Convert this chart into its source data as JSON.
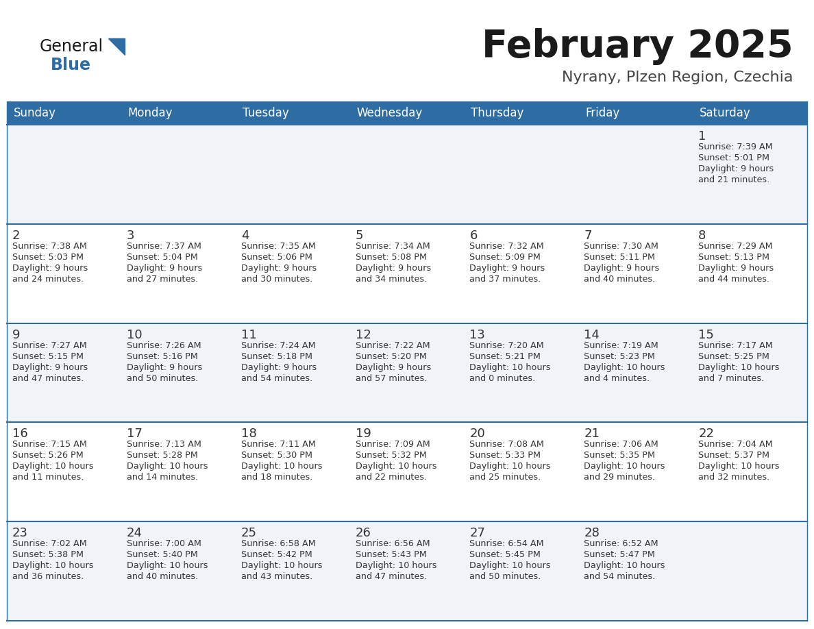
{
  "title": "February 2025",
  "subtitle": "Nyrany, Plzen Region, Czechia",
  "days_of_week": [
    "Sunday",
    "Monday",
    "Tuesday",
    "Wednesday",
    "Thursday",
    "Friday",
    "Saturday"
  ],
  "header_bg": "#2E6DA4",
  "header_text": "#FFFFFF",
  "row_bg_light": "#F0F4F8",
  "row_bg_white": "#FFFFFF",
  "cell_text": "#333333",
  "separator_color": "#2E6DA4",
  "title_color": "#1a1a1a",
  "subtitle_color": "#444444",
  "generalblue_black": "#1a1a1a",
  "generalblue_blue": "#2E6DA4",
  "calendar_data": [
    [
      null,
      null,
      null,
      null,
      null,
      null,
      {
        "day": 1,
        "sunrise": "7:39 AM",
        "sunset": "5:01 PM",
        "daylight": "9 hours\nand 21 minutes."
      }
    ],
    [
      {
        "day": 2,
        "sunrise": "7:38 AM",
        "sunset": "5:03 PM",
        "daylight": "9 hours\nand 24 minutes."
      },
      {
        "day": 3,
        "sunrise": "7:37 AM",
        "sunset": "5:04 PM",
        "daylight": "9 hours\nand 27 minutes."
      },
      {
        "day": 4,
        "sunrise": "7:35 AM",
        "sunset": "5:06 PM",
        "daylight": "9 hours\nand 30 minutes."
      },
      {
        "day": 5,
        "sunrise": "7:34 AM",
        "sunset": "5:08 PM",
        "daylight": "9 hours\nand 34 minutes."
      },
      {
        "day": 6,
        "sunrise": "7:32 AM",
        "sunset": "5:09 PM",
        "daylight": "9 hours\nand 37 minutes."
      },
      {
        "day": 7,
        "sunrise": "7:30 AM",
        "sunset": "5:11 PM",
        "daylight": "9 hours\nand 40 minutes."
      },
      {
        "day": 8,
        "sunrise": "7:29 AM",
        "sunset": "5:13 PM",
        "daylight": "9 hours\nand 44 minutes."
      }
    ],
    [
      {
        "day": 9,
        "sunrise": "7:27 AM",
        "sunset": "5:15 PM",
        "daylight": "9 hours\nand 47 minutes."
      },
      {
        "day": 10,
        "sunrise": "7:26 AM",
        "sunset": "5:16 PM",
        "daylight": "9 hours\nand 50 minutes."
      },
      {
        "day": 11,
        "sunrise": "7:24 AM",
        "sunset": "5:18 PM",
        "daylight": "9 hours\nand 54 minutes."
      },
      {
        "day": 12,
        "sunrise": "7:22 AM",
        "sunset": "5:20 PM",
        "daylight": "9 hours\nand 57 minutes."
      },
      {
        "day": 13,
        "sunrise": "7:20 AM",
        "sunset": "5:21 PM",
        "daylight": "10 hours\nand 0 minutes."
      },
      {
        "day": 14,
        "sunrise": "7:19 AM",
        "sunset": "5:23 PM",
        "daylight": "10 hours\nand 4 minutes."
      },
      {
        "day": 15,
        "sunrise": "7:17 AM",
        "sunset": "5:25 PM",
        "daylight": "10 hours\nand 7 minutes."
      }
    ],
    [
      {
        "day": 16,
        "sunrise": "7:15 AM",
        "sunset": "5:26 PM",
        "daylight": "10 hours\nand 11 minutes."
      },
      {
        "day": 17,
        "sunrise": "7:13 AM",
        "sunset": "5:28 PM",
        "daylight": "10 hours\nand 14 minutes."
      },
      {
        "day": 18,
        "sunrise": "7:11 AM",
        "sunset": "5:30 PM",
        "daylight": "10 hours\nand 18 minutes."
      },
      {
        "day": 19,
        "sunrise": "7:09 AM",
        "sunset": "5:32 PM",
        "daylight": "10 hours\nand 22 minutes."
      },
      {
        "day": 20,
        "sunrise": "7:08 AM",
        "sunset": "5:33 PM",
        "daylight": "10 hours\nand 25 minutes."
      },
      {
        "day": 21,
        "sunrise": "7:06 AM",
        "sunset": "5:35 PM",
        "daylight": "10 hours\nand 29 minutes."
      },
      {
        "day": 22,
        "sunrise": "7:04 AM",
        "sunset": "5:37 PM",
        "daylight": "10 hours\nand 32 minutes."
      }
    ],
    [
      {
        "day": 23,
        "sunrise": "7:02 AM",
        "sunset": "5:38 PM",
        "daylight": "10 hours\nand 36 minutes."
      },
      {
        "day": 24,
        "sunrise": "7:00 AM",
        "sunset": "5:40 PM",
        "daylight": "10 hours\nand 40 minutes."
      },
      {
        "day": 25,
        "sunrise": "6:58 AM",
        "sunset": "5:42 PM",
        "daylight": "10 hours\nand 43 minutes."
      },
      {
        "day": 26,
        "sunrise": "6:56 AM",
        "sunset": "5:43 PM",
        "daylight": "10 hours\nand 47 minutes."
      },
      {
        "day": 27,
        "sunrise": "6:54 AM",
        "sunset": "5:45 PM",
        "daylight": "10 hours\nand 50 minutes."
      },
      {
        "day": 28,
        "sunrise": "6:52 AM",
        "sunset": "5:47 PM",
        "daylight": "10 hours\nand 54 minutes."
      },
      null
    ]
  ]
}
